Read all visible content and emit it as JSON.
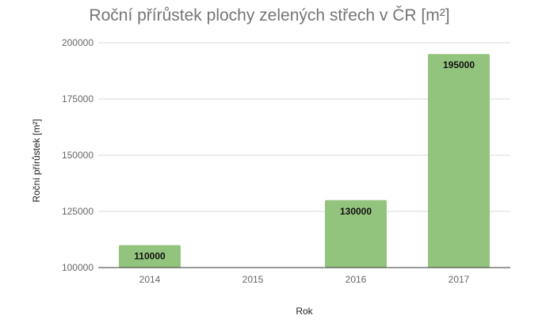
{
  "chart_data": {
    "type": "bar",
    "title": "Roční přírůstek plochy zelených střech v ČR [m²]",
    "xlabel": "Rok",
    "ylabel": "Roční přírůstek [m²]",
    "categories": [
      "2014",
      "2015",
      "2016",
      "2017"
    ],
    "values": [
      110000,
      null,
      130000,
      195000
    ],
    "data_labels": [
      "110000",
      "",
      "130000",
      "195000"
    ],
    "ylim": [
      100000,
      200000
    ],
    "yticks": [
      100000,
      125000,
      150000,
      175000,
      200000
    ],
    "ytick_labels": [
      "100000",
      "125000",
      "150000",
      "175000",
      "200000"
    ],
    "grid": true,
    "legend": "none",
    "bar_color": "#93c47d"
  }
}
